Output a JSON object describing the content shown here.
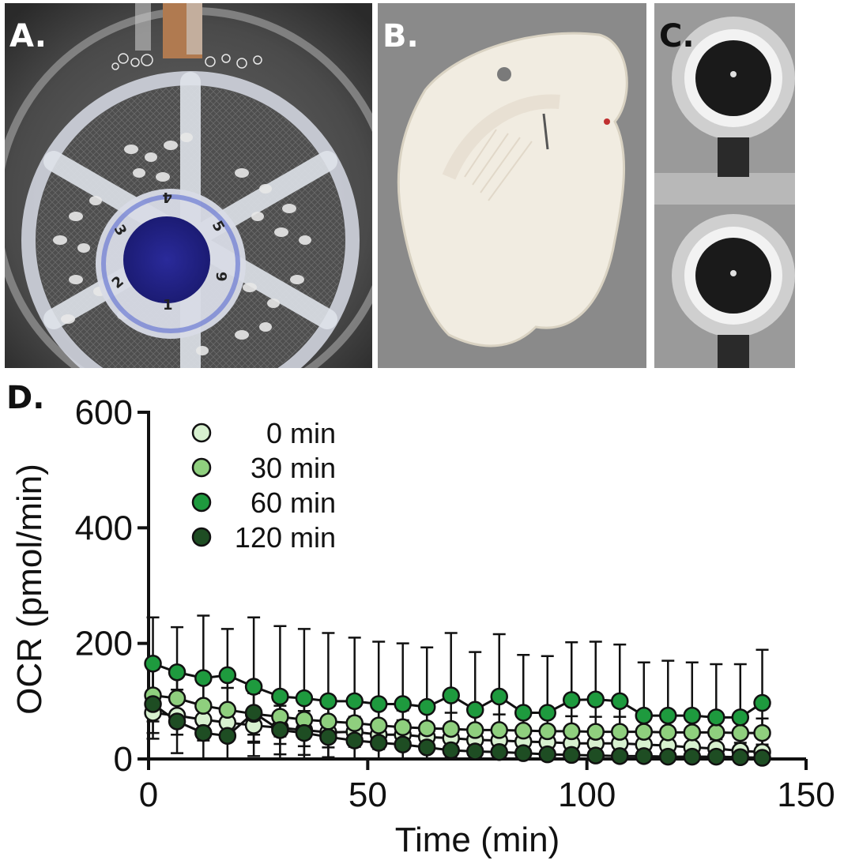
{
  "panels": {
    "a": {
      "label": "A.",
      "wells": [
        "1",
        "2",
        "3",
        "4",
        "5",
        "9"
      ]
    },
    "b": {
      "label": "B."
    },
    "c": {
      "label": "C."
    },
    "d": {
      "label": "D."
    }
  },
  "chart_data": {
    "type": "scatter",
    "xlabel": "Time (min)",
    "ylabel": "OCR (pmol/min)",
    "xlim": [
      0,
      150
    ],
    "ylim": [
      0,
      600
    ],
    "xticks": [
      0,
      50,
      100,
      150
    ],
    "yticks": [
      0,
      200,
      400,
      600
    ],
    "grid": false,
    "legend_position": "top-left",
    "x": [
      1,
      6.5,
      12.5,
      18,
      24,
      30,
      35.5,
      41,
      47,
      52.5,
      58,
      63.5,
      69,
      74.5,
      80,
      85.5,
      91,
      96.5,
      102,
      107.5,
      113,
      118.5,
      124,
      129.5,
      135,
      140
    ],
    "series": [
      {
        "name": "0 min",
        "color": "#d7f0cf",
        "values": [
          80,
          75,
          68,
          63,
          58,
          54,
          50,
          46,
          47,
          42,
          42,
          38,
          36,
          33,
          32,
          30,
          29,
          27,
          27,
          27,
          25,
          23,
          20,
          18,
          14,
          12
        ],
        "errors": [
          35,
          33,
          32,
          30,
          30,
          28,
          28,
          26,
          26,
          25,
          25,
          24,
          23,
          22,
          22,
          21,
          21,
          20,
          20,
          20,
          19,
          18,
          17,
          16,
          14,
          13
        ]
      },
      {
        "name": "30 min",
        "color": "#8fcf7e",
        "values": [
          110,
          105,
          92,
          85,
          78,
          73,
          68,
          65,
          62,
          58,
          55,
          53,
          52,
          50,
          50,
          49,
          48,
          48,
          47,
          47,
          47,
          46,
          46,
          46,
          45,
          45
        ],
        "errors": [
          45,
          43,
          40,
          38,
          36,
          34,
          33,
          32,
          31,
          30,
          29,
          28,
          28,
          27,
          27,
          27,
          26,
          26,
          26,
          26,
          26,
          25,
          25,
          25,
          25,
          25
        ]
      },
      {
        "name": "60 min",
        "color": "#1e9a3e",
        "values": [
          165,
          150,
          140,
          145,
          125,
          108,
          105,
          100,
          100,
          95,
          95,
          90,
          110,
          85,
          108,
          80,
          80,
          102,
          103,
          100,
          75,
          75,
          75,
          72,
          72,
          97
        ],
        "errors": [
          80,
          78,
          108,
          80,
          120,
          122,
          120,
          118,
          110,
          108,
          105,
          103,
          108,
          100,
          108,
          100,
          98,
          100,
          100,
          98,
          92,
          95,
          92,
          92,
          92,
          92
        ]
      },
      {
        "name": "120 min",
        "color": "#1e4d23",
        "values": [
          95,
          65,
          45,
          40,
          80,
          50,
          45,
          38,
          32,
          28,
          25,
          20,
          15,
          13,
          12,
          10,
          8,
          7,
          6,
          5,
          5,
          4,
          4,
          4,
          3,
          2
        ],
        "errors": [
          60,
          55,
          50,
          48,
          50,
          42,
          38,
          35,
          33,
          30,
          28,
          25,
          22,
          20,
          18,
          16,
          15,
          14,
          13,
          12,
          11,
          10,
          10,
          10,
          9,
          8
        ]
      }
    ]
  }
}
